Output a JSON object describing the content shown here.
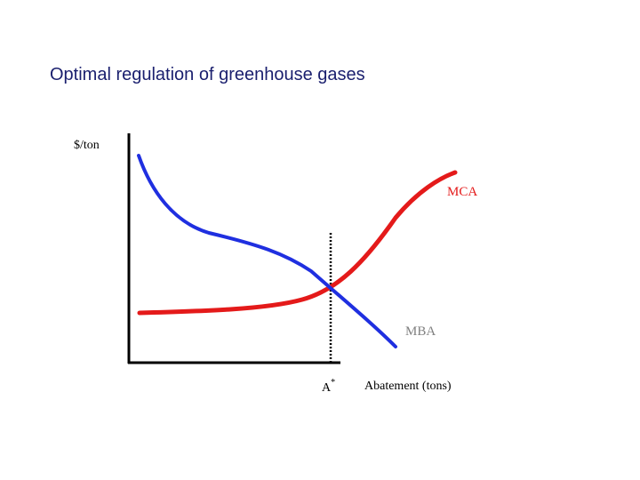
{
  "title": "Optimal regulation of greenhouse gases",
  "diagram": {
    "y_axis_label": "$/ton",
    "x_axis_label": "Abatement (tons)",
    "curves": [
      {
        "label": "MCA",
        "color": "#e41a1a"
      },
      {
        "label": "MBA",
        "color": "#1f2fe0"
      }
    ],
    "optimum_label": "A",
    "optimum_superscript": "*"
  }
}
